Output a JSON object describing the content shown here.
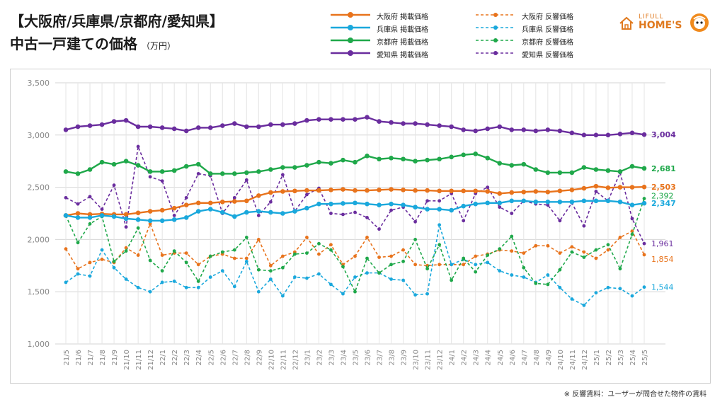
{
  "header": {
    "title_line1": "【大阪府/兵庫県/京都府/愛知県】",
    "title_line2": "中古一戸建ての価格",
    "unit": "（万円）"
  },
  "logo": {
    "top": "LIFULL",
    "bottom": "HOME'S"
  },
  "footnote": "※ 反響賃料：ユーザーが問合せた物件の賃料",
  "chart_data": {
    "type": "line",
    "x": [
      "21/5",
      "21/6",
      "21/7",
      "21/8",
      "21/9",
      "21/10",
      "21/11",
      "21/12",
      "22/1",
      "22/2",
      "22/3",
      "22/4",
      "22/5",
      "22/6",
      "22/7",
      "22/8",
      "22/9",
      "22/10",
      "22/11",
      "22/12",
      "23/1",
      "23/2",
      "23/3",
      "23/4",
      "23/5",
      "23/6",
      "23/7",
      "23/8",
      "23/9",
      "23/10",
      "23/11",
      "23/12",
      "24/1",
      "24/2",
      "24/3",
      "24/4",
      "24/5",
      "24/6",
      "24/7",
      "24/8",
      "24/9",
      "24/10",
      "24/11",
      "24/12",
      "25/1",
      "25/2",
      "25/3",
      "25/4",
      "25/5"
    ],
    "ylim": [
      1000,
      3500
    ],
    "yticks": [
      "1,000",
      "1,500",
      "2,000",
      "2,500",
      "3,000",
      "3,500"
    ],
    "grid": true,
    "series": [
      {
        "name": "大阪府 掲載価格",
        "color": "#e8731c",
        "dash": false,
        "end_label": "2,503",
        "values": [
          2230,
          2250,
          2240,
          2245,
          2240,
          2240,
          2255,
          2270,
          2280,
          2300,
          2330,
          2350,
          2350,
          2360,
          2365,
          2370,
          2420,
          2450,
          2460,
          2465,
          2470,
          2470,
          2475,
          2480,
          2470,
          2470,
          2475,
          2480,
          2475,
          2470,
          2470,
          2465,
          2465,
          2465,
          2465,
          2460,
          2440,
          2450,
          2455,
          2460,
          2455,
          2465,
          2475,
          2490,
          2510,
          2495,
          2500,
          2500,
          2503
        ]
      },
      {
        "name": "兵庫県 掲載価格",
        "color": "#1aa8dc",
        "dash": false,
        "end_label": "2,347",
        "values": [
          2230,
          2210,
          2210,
          2230,
          2220,
          2200,
          2190,
          2180,
          2180,
          2190,
          2210,
          2270,
          2290,
          2260,
          2220,
          2260,
          2270,
          2260,
          2250,
          2270,
          2300,
          2340,
          2340,
          2345,
          2350,
          2340,
          2330,
          2340,
          2330,
          2310,
          2290,
          2290,
          2280,
          2320,
          2340,
          2350,
          2350,
          2370,
          2370,
          2360,
          2360,
          2360,
          2360,
          2370,
          2370,
          2370,
          2360,
          2330,
          2347
        ]
      },
      {
        "name": "京都府 掲載価格",
        "color": "#1fa84a",
        "dash": false,
        "end_label": "2,681",
        "values": [
          2650,
          2630,
          2670,
          2740,
          2720,
          2750,
          2710,
          2650,
          2650,
          2660,
          2700,
          2720,
          2630,
          2630,
          2630,
          2640,
          2650,
          2670,
          2690,
          2690,
          2710,
          2740,
          2730,
          2760,
          2740,
          2800,
          2770,
          2780,
          2770,
          2750,
          2760,
          2770,
          2790,
          2810,
          2820,
          2780,
          2730,
          2710,
          2720,
          2670,
          2640,
          2640,
          2640,
          2690,
          2670,
          2660,
          2650,
          2700,
          2681
        ]
      },
      {
        "name": "愛知県 掲載価格",
        "color": "#6a2d9e",
        "dash": false,
        "end_label": "3,004",
        "values": [
          3050,
          3080,
          3090,
          3100,
          3130,
          3140,
          3080,
          3080,
          3070,
          3060,
          3040,
          3070,
          3070,
          3090,
          3110,
          3080,
          3080,
          3100,
          3100,
          3110,
          3140,
          3150,
          3150,
          3150,
          3150,
          3170,
          3130,
          3120,
          3110,
          3110,
          3100,
          3090,
          3080,
          3050,
          3040,
          3060,
          3080,
          3050,
          3050,
          3040,
          3050,
          3040,
          3020,
          3000,
          3000,
          3000,
          3010,
          3020,
          3004
        ]
      },
      {
        "name": "大阪府 反響価格",
        "color": "#e8731c",
        "dash": true,
        "end_label": "1,854",
        "values": [
          1910,
          1720,
          1780,
          1810,
          1780,
          1920,
          1850,
          2150,
          1850,
          1870,
          1870,
          1760,
          1840,
          1860,
          1820,
          1820,
          2000,
          1750,
          1840,
          1880,
          2020,
          1860,
          1950,
          1760,
          1840,
          2020,
          1830,
          1840,
          1900,
          1760,
          1750,
          1760,
          1760,
          1760,
          1840,
          1860,
          1900,
          1890,
          1870,
          1940,
          1940,
          1870,
          1930,
          1880,
          1820,
          1900,
          2020,
          2080,
          1854
        ]
      },
      {
        "name": "兵庫県 反響価格",
        "color": "#1aa8dc",
        "dash": true,
        "end_label": "1,544",
        "values": [
          1590,
          1670,
          1650,
          1900,
          1730,
          1620,
          1540,
          1500,
          1590,
          1600,
          1540,
          1540,
          1640,
          1700,
          1550,
          1790,
          1500,
          1620,
          1460,
          1640,
          1630,
          1670,
          1570,
          1480,
          1640,
          1680,
          1680,
          1620,
          1610,
          1470,
          1480,
          2140,
          1760,
          1810,
          1760,
          1780,
          1700,
          1660,
          1640,
          1590,
          1660,
          1540,
          1430,
          1370,
          1490,
          1540,
          1530,
          1460,
          1544
        ]
      },
      {
        "name": "京都府 反響価格",
        "color": "#1fa84a",
        "dash": true,
        "end_label": "2,392",
        "values": [
          2230,
          1970,
          2150,
          2220,
          1790,
          1890,
          2110,
          1800,
          1700,
          1890,
          1780,
          1600,
          1840,
          1880,
          1900,
          2020,
          1710,
          1700,
          1730,
          1860,
          1870,
          1960,
          1900,
          1740,
          1500,
          1820,
          1680,
          1760,
          1790,
          2000,
          1720,
          1950,
          1610,
          1820,
          1690,
          1850,
          1910,
          2030,
          1730,
          1580,
          1570,
          1710,
          1880,
          1830,
          1900,
          1950,
          1720,
          2050,
          2392
        ]
      },
      {
        "name": "愛知県 反響価格",
        "color": "#6a2d9e",
        "dash": true,
        "end_label": "1,961",
        "values": [
          2400,
          2340,
          2410,
          2290,
          2520,
          2120,
          2890,
          2600,
          2560,
          2230,
          2400,
          2630,
          2610,
          2250,
          2400,
          2570,
          2230,
          2360,
          2620,
          2270,
          2430,
          2490,
          2250,
          2240,
          2260,
          2210,
          2100,
          2280,
          2310,
          2170,
          2370,
          2370,
          2440,
          2180,
          2440,
          2500,
          2310,
          2250,
          2370,
          2340,
          2330,
          2180,
          2350,
          2130,
          2460,
          2370,
          2640,
          2200,
          1961
        ]
      }
    ]
  }
}
